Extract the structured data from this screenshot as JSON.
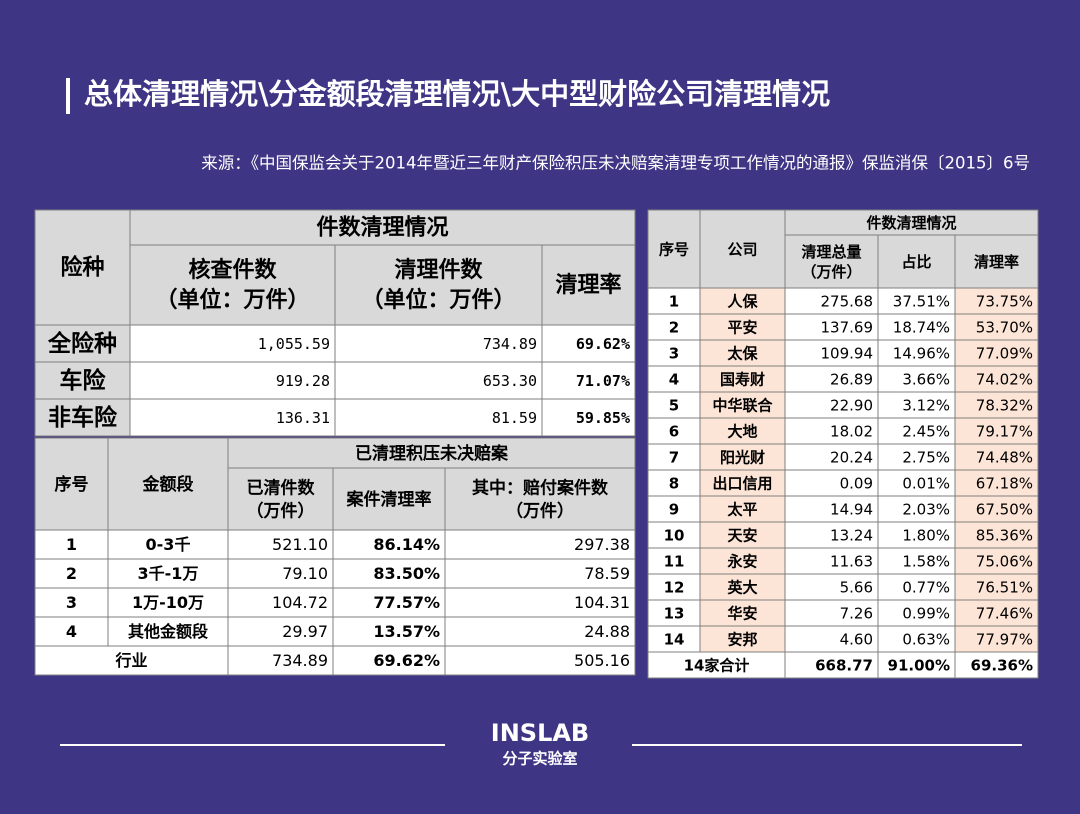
{
  "header": {
    "title": "总体清理情况\\分金额段清理情况\\大中型财险公司清理情况",
    "source": "来源：《中国保监会关于2014年暨近三年财产保险积压未决赔案清理专项工作情况的通报》保监消保〔2015〕6号"
  },
  "table1": {
    "corner": "险种",
    "group": "件数清理情况",
    "columns": [
      [
        "核查件数",
        "（单位：万件）"
      ],
      [
        "清理件数",
        "（单位：万件）"
      ],
      [
        "清理率"
      ]
    ],
    "rows": [
      [
        "全险种",
        "1,055.59",
        "734.89",
        "69.62%"
      ],
      [
        "车险",
        "919.28",
        "653.30",
        "71.07%"
      ],
      [
        "非车险",
        "136.31",
        "81.59",
        "59.85%"
      ]
    ]
  },
  "table2": {
    "corner": [
      "序号",
      "金额段"
    ],
    "group": "已清理积压未决赔案",
    "columns": [
      [
        "已清件数",
        "（万件）"
      ],
      [
        "案件清理率"
      ],
      [
        "其中：赔付案件数",
        "（万件）"
      ]
    ],
    "rows": [
      [
        "1",
        "0-3千",
        "521.10",
        "86.14%",
        "297.38"
      ],
      [
        "2",
        "3千-1万",
        "79.10",
        "83.50%",
        "78.59"
      ],
      [
        "3",
        "1万-10万",
        "104.72",
        "77.57%",
        "104.31"
      ],
      [
        "4",
        "其他金额段",
        "29.97",
        "13.57%",
        "24.88"
      ]
    ],
    "total": [
      "行业",
      "734.89",
      "69.62%",
      "505.16"
    ]
  },
  "table3": {
    "corner": [
      "序号",
      "公司"
    ],
    "group": "件数清理情况",
    "columns": [
      [
        "清理总量",
        "（万件）"
      ],
      [
        "占比"
      ],
      [
        "清理率"
      ]
    ],
    "rows": [
      [
        "1",
        "人保",
        "275.68",
        "37.51%",
        "73.75%"
      ],
      [
        "2",
        "平安",
        "137.69",
        "18.74%",
        "53.70%"
      ],
      [
        "3",
        "太保",
        "109.94",
        "14.96%",
        "77.09%"
      ],
      [
        "4",
        "国寿财",
        "26.89",
        "3.66%",
        "74.02%"
      ],
      [
        "5",
        "中华联合",
        "22.90",
        "3.12%",
        "78.32%"
      ],
      [
        "6",
        "大地",
        "18.02",
        "2.45%",
        "79.17%"
      ],
      [
        "7",
        "阳光财",
        "20.24",
        "2.75%",
        "74.48%"
      ],
      [
        "8",
        "出口信用",
        "0.09",
        "0.01%",
        "67.18%"
      ],
      [
        "9",
        "太平",
        "14.94",
        "2.03%",
        "67.50%"
      ],
      [
        "10",
        "天安",
        "13.24",
        "1.80%",
        "85.36%"
      ],
      [
        "11",
        "永安",
        "11.63",
        "1.58%",
        "75.06%"
      ],
      [
        "12",
        "英大",
        "5.66",
        "0.77%",
        "76.51%"
      ],
      [
        "13",
        "华安",
        "7.26",
        "0.99%",
        "77.46%"
      ],
      [
        "14",
        "安邦",
        "4.60",
        "0.63%",
        "77.97%"
      ]
    ],
    "total": [
      "14家合计",
      "668.77",
      "91.00%",
      "69.36%"
    ]
  },
  "footer": {
    "logo": "INSLAB",
    "subtitle": "分子实验室"
  }
}
